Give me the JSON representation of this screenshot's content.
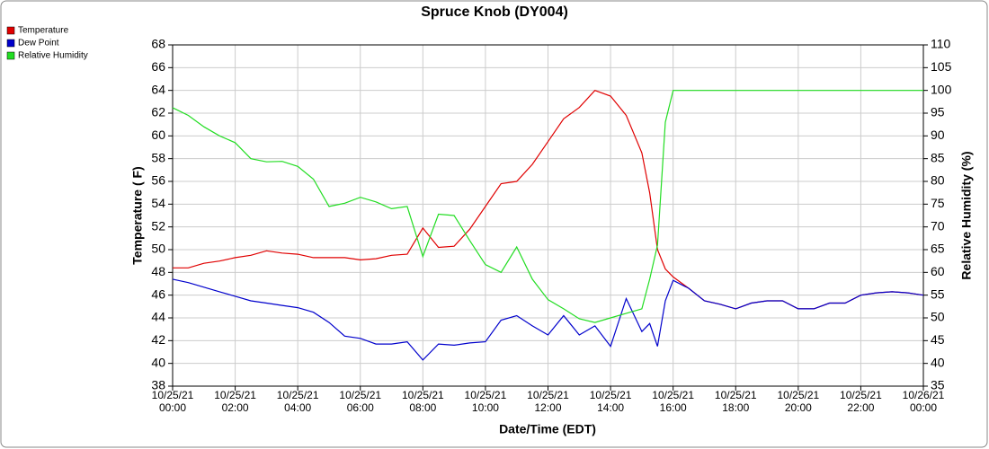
{
  "chart_data": {
    "type": "line",
    "title": "Spruce Knob (DY004)",
    "x_label": "Date/Time (EDT)",
    "y_label": "Temperature ( F)",
    "y2_label": "Relative Humidity (%)",
    "x": [
      "10/25/21 00:00",
      "10/25/21 00:30",
      "10/25/21 01:00",
      "10/25/21 01:30",
      "10/25/21 02:00",
      "10/25/21 02:30",
      "10/25/21 03:00",
      "10/25/21 03:30",
      "10/25/21 04:00",
      "10/25/21 04:30",
      "10/25/21 05:00",
      "10/25/21 05:30",
      "10/25/21 06:00",
      "10/25/21 06:30",
      "10/25/21 07:00",
      "10/25/21 07:30",
      "10/25/21 08:00",
      "10/25/21 08:30",
      "10/25/21 09:00",
      "10/25/21 09:30",
      "10/25/21 10:00",
      "10/25/21 10:30",
      "10/25/21 11:00",
      "10/25/21 11:30",
      "10/25/21 12:00",
      "10/25/21 12:30",
      "10/25/21 13:00",
      "10/25/21 13:30",
      "10/25/21 14:00",
      "10/25/21 14:30",
      "10/25/21 15:00",
      "10/25/21 15:15",
      "10/25/21 15:30",
      "10/25/21 15:45",
      "10/25/21 16:00",
      "10/25/21 16:30",
      "10/25/21 17:00",
      "10/25/21 17:30",
      "10/25/21 18:00",
      "10/25/21 18:30",
      "10/25/21 19:00",
      "10/25/21 19:30",
      "10/25/21 20:00",
      "10/25/21 20:30",
      "10/25/21 21:00",
      "10/25/21 21:30",
      "10/25/21 22:00",
      "10/25/21 22:30",
      "10/25/21 23:00",
      "10/25/21 23:30",
      "10/26/21 00:00"
    ],
    "series": [
      {
        "name": "Temperature",
        "color": "#e00000",
        "values": [
          48.4,
          48.4,
          48.8,
          49.0,
          49.3,
          49.5,
          49.9,
          49.7,
          49.6,
          49.3,
          49.3,
          49.3,
          49.1,
          49.2,
          49.5,
          49.6,
          51.9,
          50.2,
          50.3,
          51.8,
          53.8,
          55.8,
          56.0,
          57.5,
          59.5,
          61.5,
          62.5,
          64.0,
          63.5,
          61.8,
          58.5,
          55.0,
          50.0,
          48.3,
          47.6,
          46.6,
          45.5,
          45.2,
          44.8,
          45.3,
          45.5,
          45.5,
          44.8,
          44.8,
          45.3,
          45.3,
          46.0,
          46.2,
          46.3,
          46.2,
          46.0
        ]
      },
      {
        "name": "Dew Point",
        "color": "#0000cc",
        "values": [
          47.4,
          47.1,
          46.7,
          46.3,
          45.9,
          45.5,
          45.3,
          45.1,
          44.9,
          44.5,
          43.6,
          42.4,
          42.2,
          41.7,
          41.7,
          41.9,
          40.3,
          41.7,
          41.6,
          41.8,
          41.9,
          43.8,
          44.2,
          43.3,
          42.5,
          44.2,
          42.5,
          43.3,
          41.5,
          45.7,
          42.8,
          43.5,
          41.5,
          45.5,
          47.3,
          46.6,
          45.5,
          45.2,
          44.8,
          45.3,
          45.5,
          45.5,
          44.8,
          44.8,
          45.3,
          45.3,
          46.0,
          46.2,
          46.3,
          46.2,
          46.0
        ]
      },
      {
        "name": "Relative Humidity",
        "color": "#22dd22",
        "axis": "y2",
        "values": [
          96.2,
          94.5,
          92,
          90,
          88.5,
          85,
          84.3,
          84.4,
          83.3,
          80.5,
          74.5,
          75.2,
          76.5,
          75.5,
          74,
          74.5,
          63.5,
          72.8,
          72.5,
          67,
          61.7,
          60,
          65.6,
          58.5,
          54,
          52,
          49.8,
          49,
          50,
          51,
          52,
          58.5,
          66,
          93,
          100,
          100,
          100,
          100,
          100,
          100,
          100,
          100,
          100,
          100,
          100,
          100,
          100,
          100,
          100,
          100,
          100
        ]
      }
    ],
    "xlim": [
      "10/25/21 00:00",
      "10/26/21 00:00"
    ],
    "xticks": [
      "10/25/21 00:00",
      "10/25/21 02:00",
      "10/25/21 04:00",
      "10/25/21 06:00",
      "10/25/21 08:00",
      "10/25/21 10:00",
      "10/25/21 12:00",
      "10/25/21 14:00",
      "10/25/21 16:00",
      "10/25/21 18:00",
      "10/25/21 20:00",
      "10/25/21 22:00",
      "10/26/21 00:00"
    ],
    "ylim": [
      38,
      68
    ],
    "yticks": [
      38,
      40,
      42,
      44,
      46,
      48,
      50,
      52,
      54,
      56,
      58,
      60,
      62,
      64,
      66,
      68
    ],
    "y2lim": [
      35,
      110
    ],
    "y2ticks": [
      35,
      40,
      45,
      50,
      55,
      60,
      65,
      70,
      75,
      80,
      85,
      90,
      95,
      100,
      105,
      110
    ],
    "grid": true,
    "legend": "top-left"
  }
}
